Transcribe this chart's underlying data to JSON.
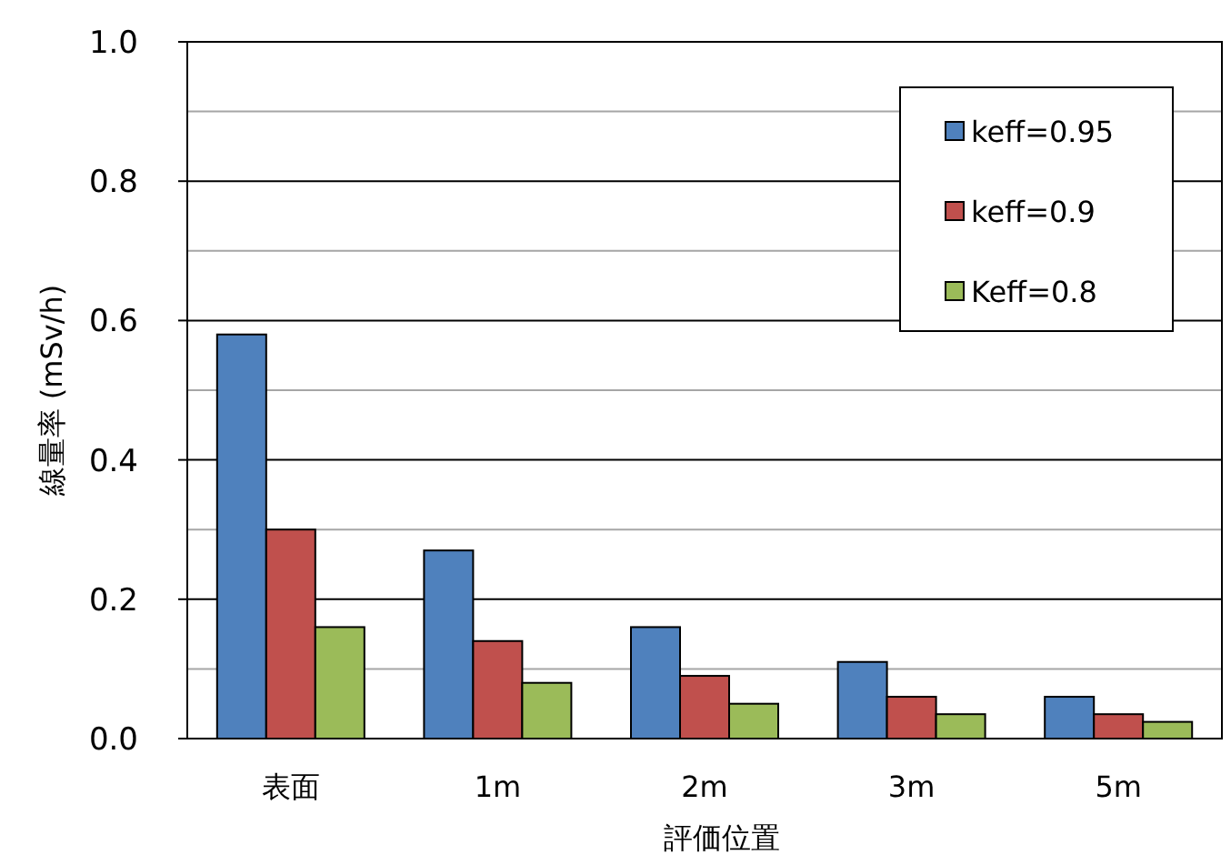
{
  "chart_data": {
    "type": "bar",
    "xlabel": "評価位置",
    "ylabel": "線量率 (mSv/h)",
    "categories": [
      "表面",
      "1m",
      "2m",
      "3m",
      "5m"
    ],
    "series": [
      {
        "name": "keff=0.95",
        "color": "#4f81bd",
        "values": [
          0.58,
          0.27,
          0.16,
          0.11,
          0.06
        ]
      },
      {
        "name": "keff=0.9",
        "color": "#c0504d",
        "values": [
          0.3,
          0.14,
          0.09,
          0.06,
          0.035
        ]
      },
      {
        "name": "Keff=0.8",
        "color": "#9bbb59",
        "values": [
          0.16,
          0.08,
          0.05,
          0.035,
          0.024
        ]
      }
    ],
    "ylim": [
      0,
      1
    ],
    "yticks": [
      {
        "value": 0,
        "label": "0.0"
      },
      {
        "value": 0.1,
        "label": null
      },
      {
        "value": 0.2,
        "label": "0.2"
      },
      {
        "value": 0.3,
        "label": null
      },
      {
        "value": 0.4,
        "label": "0.4"
      },
      {
        "value": 0.5,
        "label": null
      },
      {
        "value": 0.6,
        "label": "0.6"
      },
      {
        "value": 0.7,
        "label": null
      },
      {
        "value": 0.8,
        "label": "0.8"
      },
      {
        "value": 0.9,
        "label": null
      },
      {
        "value": 1,
        "label": "1.0"
      }
    ],
    "grid": "y",
    "legend": "top right"
  }
}
